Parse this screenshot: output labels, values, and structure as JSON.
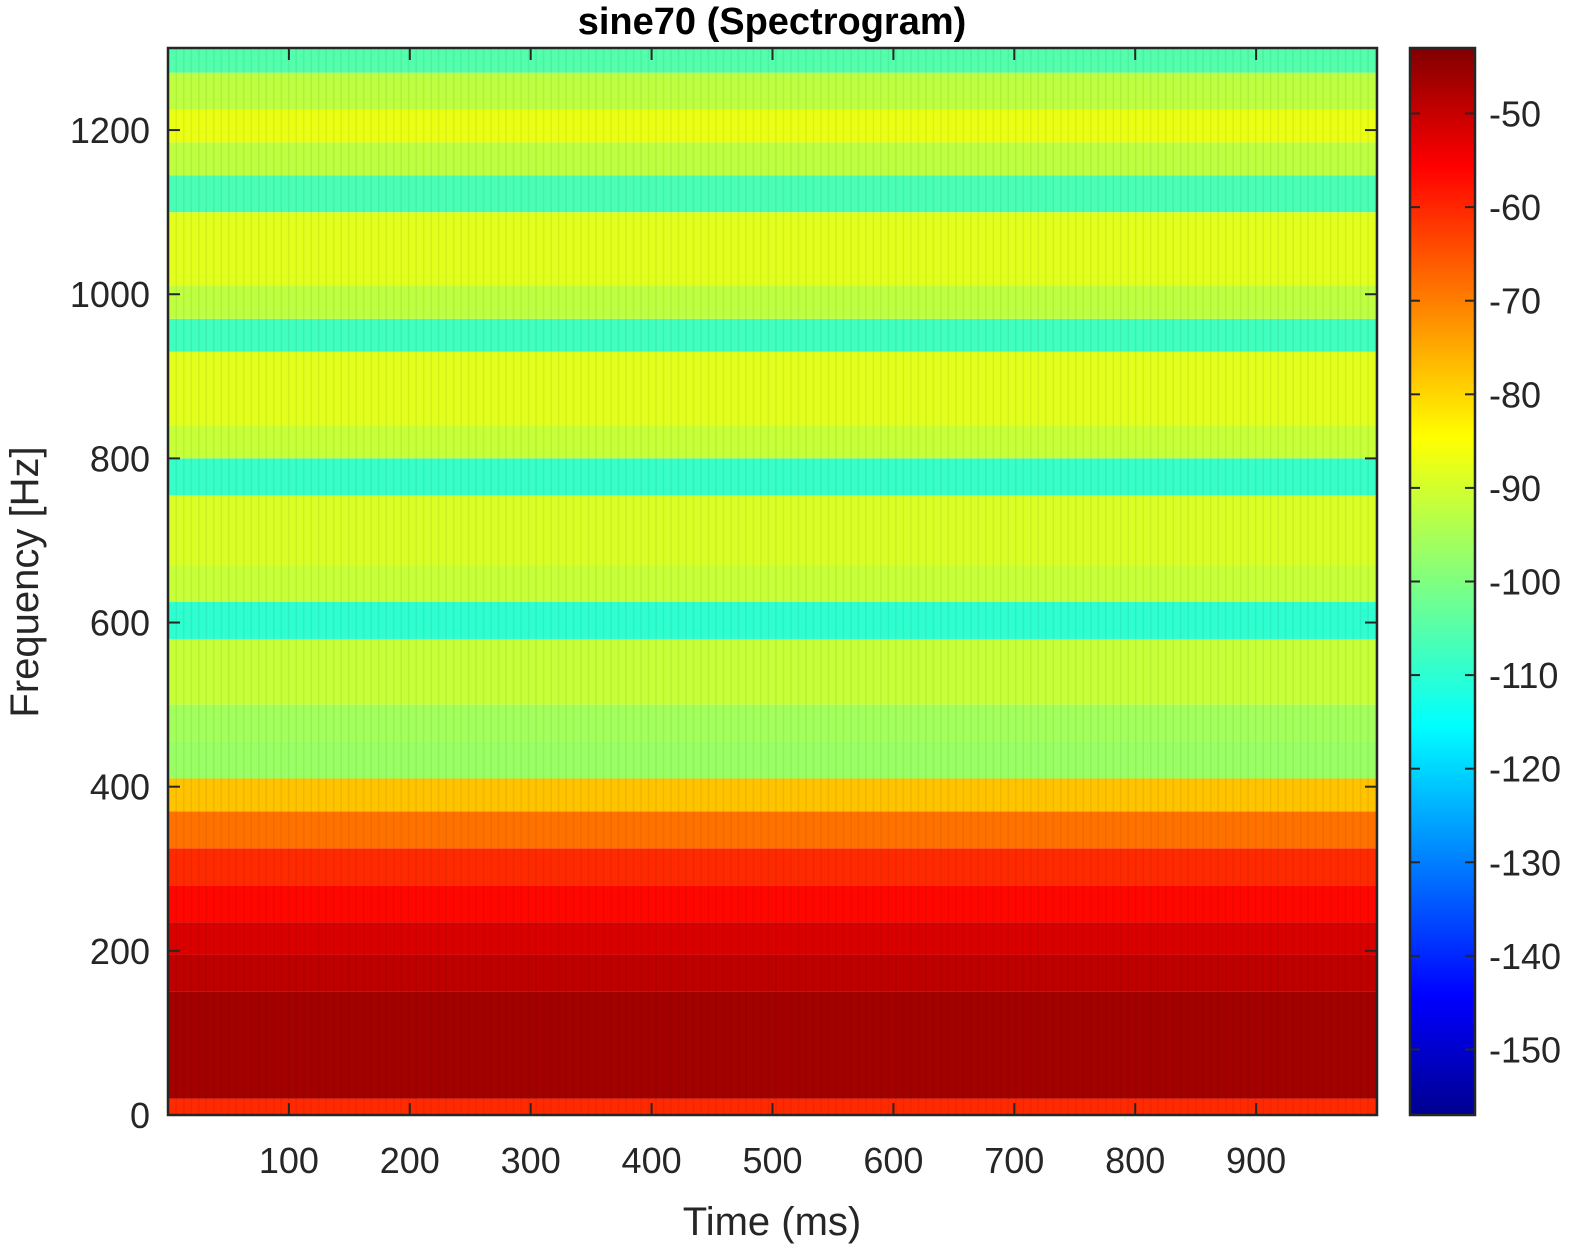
{
  "chart_data": {
    "type": "heatmap",
    "title": "sine70 (Spectrogram)",
    "xlabel": "Time (ms)",
    "ylabel": "Frequency [Hz]",
    "xlim": [
      0,
      1000
    ],
    "ylim": [
      0,
      1300
    ],
    "x_ticks": [
      100,
      200,
      300,
      400,
      500,
      600,
      700,
      800,
      900
    ],
    "y_ticks": [
      0,
      200,
      400,
      600,
      800,
      1000,
      1200
    ],
    "colorbar": {
      "colormap": "jet",
      "range": [
        -157,
        -43
      ],
      "ticks": [
        -50,
        -60,
        -70,
        -80,
        -90,
        -100,
        -110,
        -120,
        -130,
        -140,
        -150
      ]
    },
    "frequency_bands": [
      {
        "f_low": 0,
        "f_high": 20,
        "value": -62
      },
      {
        "f_low": 20,
        "f_high": 150,
        "value": -47
      },
      {
        "f_low": 150,
        "f_high": 195,
        "value": -50
      },
      {
        "f_low": 195,
        "f_high": 235,
        "value": -53
      },
      {
        "f_low": 235,
        "f_high": 280,
        "value": -58
      },
      {
        "f_low": 280,
        "f_high": 325,
        "value": -62
      },
      {
        "f_low": 325,
        "f_high": 370,
        "value": -70
      },
      {
        "f_low": 370,
        "f_high": 410,
        "value": -79
      },
      {
        "f_low": 410,
        "f_high": 455,
        "value": -97
      },
      {
        "f_low": 455,
        "f_high": 500,
        "value": -96
      },
      {
        "f_low": 500,
        "f_high": 580,
        "value": -92
      },
      {
        "f_low": 580,
        "f_high": 625,
        "value": -109
      },
      {
        "f_low": 625,
        "f_high": 670,
        "value": -92
      },
      {
        "f_low": 670,
        "f_high": 755,
        "value": -90
      },
      {
        "f_low": 755,
        "f_high": 800,
        "value": -108
      },
      {
        "f_low": 800,
        "f_high": 840,
        "value": -92
      },
      {
        "f_low": 840,
        "f_high": 930,
        "value": -89
      },
      {
        "f_low": 930,
        "f_high": 970,
        "value": -107
      },
      {
        "f_low": 970,
        "f_high": 1010,
        "value": -93
      },
      {
        "f_low": 1010,
        "f_high": 1100,
        "value": -89
      },
      {
        "f_low": 1100,
        "f_high": 1145,
        "value": -106
      },
      {
        "f_low": 1145,
        "f_high": 1185,
        "value": -93
      },
      {
        "f_low": 1185,
        "f_high": 1225,
        "value": -88
      },
      {
        "f_low": 1225,
        "f_high": 1270,
        "value": -93
      },
      {
        "f_low": 1270,
        "f_high": 1300,
        "value": -105
      }
    ],
    "frame_period_ms": 6.2
  }
}
